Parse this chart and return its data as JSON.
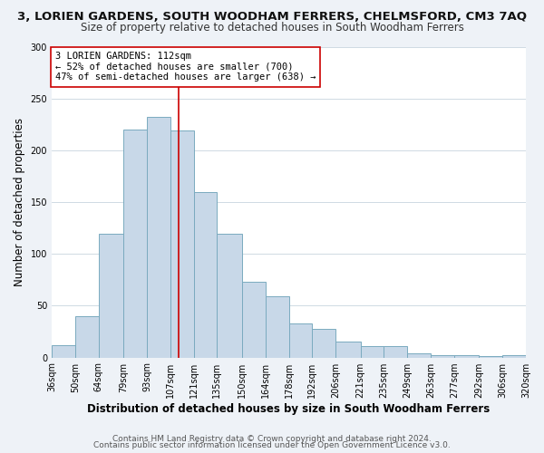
{
  "title": "3, LORIEN GARDENS, SOUTH WOODHAM FERRERS, CHELMSFORD, CM3 7AQ",
  "subtitle": "Size of property relative to detached houses in South Woodham Ferrers",
  "xlabel": "Distribution of detached houses by size in South Woodham Ferrers",
  "ylabel": "Number of detached properties",
  "bins": [
    36,
    50,
    64,
    79,
    93,
    107,
    121,
    135,
    150,
    164,
    178,
    192,
    206,
    221,
    235,
    249,
    263,
    277,
    292,
    306,
    320
  ],
  "values": [
    12,
    40,
    119,
    220,
    232,
    219,
    160,
    119,
    73,
    59,
    33,
    28,
    15,
    11,
    11,
    4,
    2,
    2,
    1,
    2
  ],
  "bar_color": "#c8d8e8",
  "bar_edge_color": "#7aaabf",
  "property_line_x": 112,
  "property_line_color": "#cc0000",
  "annotation_text": "3 LORIEN GARDENS: 112sqm\n← 52% of detached houses are smaller (700)\n47% of semi-detached houses are larger (638) →",
  "annotation_box_color": "#ffffff",
  "annotation_box_edge": "#cc0000",
  "ylim": [
    0,
    300
  ],
  "tick_labels": [
    "36sqm",
    "50sqm",
    "64sqm",
    "79sqm",
    "93sqm",
    "107sqm",
    "121sqm",
    "135sqm",
    "150sqm",
    "164sqm",
    "178sqm",
    "192sqm",
    "206sqm",
    "221sqm",
    "235sqm",
    "249sqm",
    "263sqm",
    "277sqm",
    "292sqm",
    "306sqm",
    "320sqm"
  ],
  "footer1": "Contains HM Land Registry data © Crown copyright and database right 2024.",
  "footer2": "Contains public sector information licensed under the Open Government Licence v3.0.",
  "background_color": "#eef2f7",
  "plot_background_color": "#ffffff",
  "title_fontsize": 9.5,
  "subtitle_fontsize": 8.5,
  "axis_label_fontsize": 8.5,
  "tick_fontsize": 7,
  "footer_fontsize": 6.5,
  "annotation_fontsize": 7.5
}
